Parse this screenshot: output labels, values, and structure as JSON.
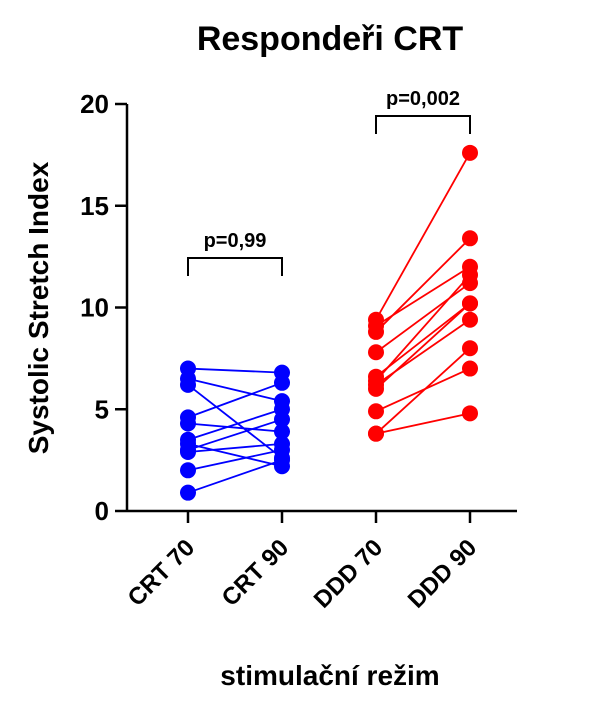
{
  "chart_data": {
    "type": "scatter",
    "title": "Respondeři CRT",
    "xlabel": "stimulační režim",
    "ylabel": "Systolic Stretch Index",
    "categories": [
      "CRT 70",
      "CRT 90",
      "DDD 70",
      "DDD 90"
    ],
    "ylim": [
      0,
      20
    ],
    "yticks": [
      "0",
      "5",
      "10",
      "15",
      "20"
    ],
    "colors": {
      "crt": "#0000ff",
      "ddd": "#ff0000"
    },
    "groups": [
      {
        "name": "CRT",
        "color": "#0000ff",
        "from": "CRT 70",
        "to": "CRT 90",
        "pairs": [
          [
            7.0,
            6.8
          ],
          [
            6.5,
            5.4
          ],
          [
            6.2,
            2.6
          ],
          [
            4.6,
            6.3
          ],
          [
            4.3,
            3.9
          ],
          [
            3.5,
            5.0
          ],
          [
            3.3,
            2.2
          ],
          [
            3.0,
            4.5
          ],
          [
            2.9,
            3.3
          ],
          [
            2.0,
            3.0
          ],
          [
            0.9,
            2.5
          ]
        ]
      },
      {
        "name": "DDD",
        "color": "#ff0000",
        "from": "DDD 70",
        "to": "DDD 90",
        "pairs": [
          [
            9.4,
            17.6
          ],
          [
            9.1,
            12.0
          ],
          [
            8.8,
            13.4
          ],
          [
            7.8,
            11.2
          ],
          [
            6.6,
            10.2
          ],
          [
            6.4,
            11.6
          ],
          [
            6.2,
            9.4
          ],
          [
            6.0,
            10.2
          ],
          [
            4.9,
            7.0
          ],
          [
            3.8,
            8.0
          ],
          [
            3.8,
            4.8
          ]
        ]
      }
    ],
    "annotations": [
      {
        "text": "p=0,99",
        "from": "CRT 70",
        "to": "CRT 90"
      },
      {
        "text": "p=0,002",
        "from": "DDD 70",
        "to": "DDD 90"
      }
    ]
  }
}
